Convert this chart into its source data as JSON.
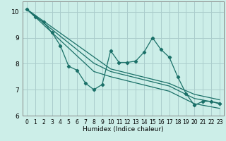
{
  "xlabel": "Humidex (Indice chaleur)",
  "background_color": "#cceee8",
  "grid_color": "#aacccc",
  "line_color": "#1a7068",
  "xlim": [
    -0.5,
    23.5
  ],
  "ylim": [
    6.0,
    10.4
  ],
  "yticks": [
    6,
    7,
    8,
    9,
    10
  ],
  "xticks": [
    0,
    1,
    2,
    3,
    4,
    5,
    6,
    7,
    8,
    9,
    10,
    11,
    12,
    13,
    14,
    15,
    16,
    17,
    18,
    19,
    20,
    21,
    22,
    23
  ],
  "jagged_x": [
    0,
    1,
    2,
    3,
    4,
    5,
    6,
    7,
    8,
    9,
    10,
    11,
    12,
    13,
    14,
    15,
    16,
    17,
    18,
    19,
    20,
    21,
    22,
    23
  ],
  "jagged_y": [
    10.1,
    9.8,
    9.6,
    9.2,
    8.7,
    7.9,
    7.75,
    7.25,
    7.0,
    7.2,
    8.5,
    8.05,
    8.05,
    8.1,
    8.45,
    9.0,
    8.55,
    8.25,
    7.5,
    6.85,
    6.4,
    6.55,
    6.55,
    6.45
  ],
  "line_a": [
    10.1,
    9.87,
    9.64,
    9.41,
    9.18,
    8.95,
    8.72,
    8.49,
    8.26,
    8.03,
    7.8,
    7.72,
    7.64,
    7.56,
    7.48,
    7.4,
    7.32,
    7.24,
    7.1,
    6.96,
    6.82,
    6.75,
    6.68,
    6.61
  ],
  "line_b": [
    10.1,
    9.84,
    9.58,
    9.32,
    9.06,
    8.8,
    8.54,
    8.28,
    8.02,
    7.86,
    7.7,
    7.62,
    7.54,
    7.46,
    7.38,
    7.3,
    7.22,
    7.14,
    6.98,
    6.82,
    6.66,
    6.6,
    6.54,
    6.48
  ],
  "line_c": [
    10.1,
    9.8,
    9.5,
    9.2,
    8.9,
    8.6,
    8.3,
    8.0,
    7.7,
    7.6,
    7.5,
    7.42,
    7.34,
    7.26,
    7.18,
    7.1,
    7.02,
    6.94,
    6.78,
    6.62,
    6.46,
    6.4,
    6.34,
    6.28
  ]
}
